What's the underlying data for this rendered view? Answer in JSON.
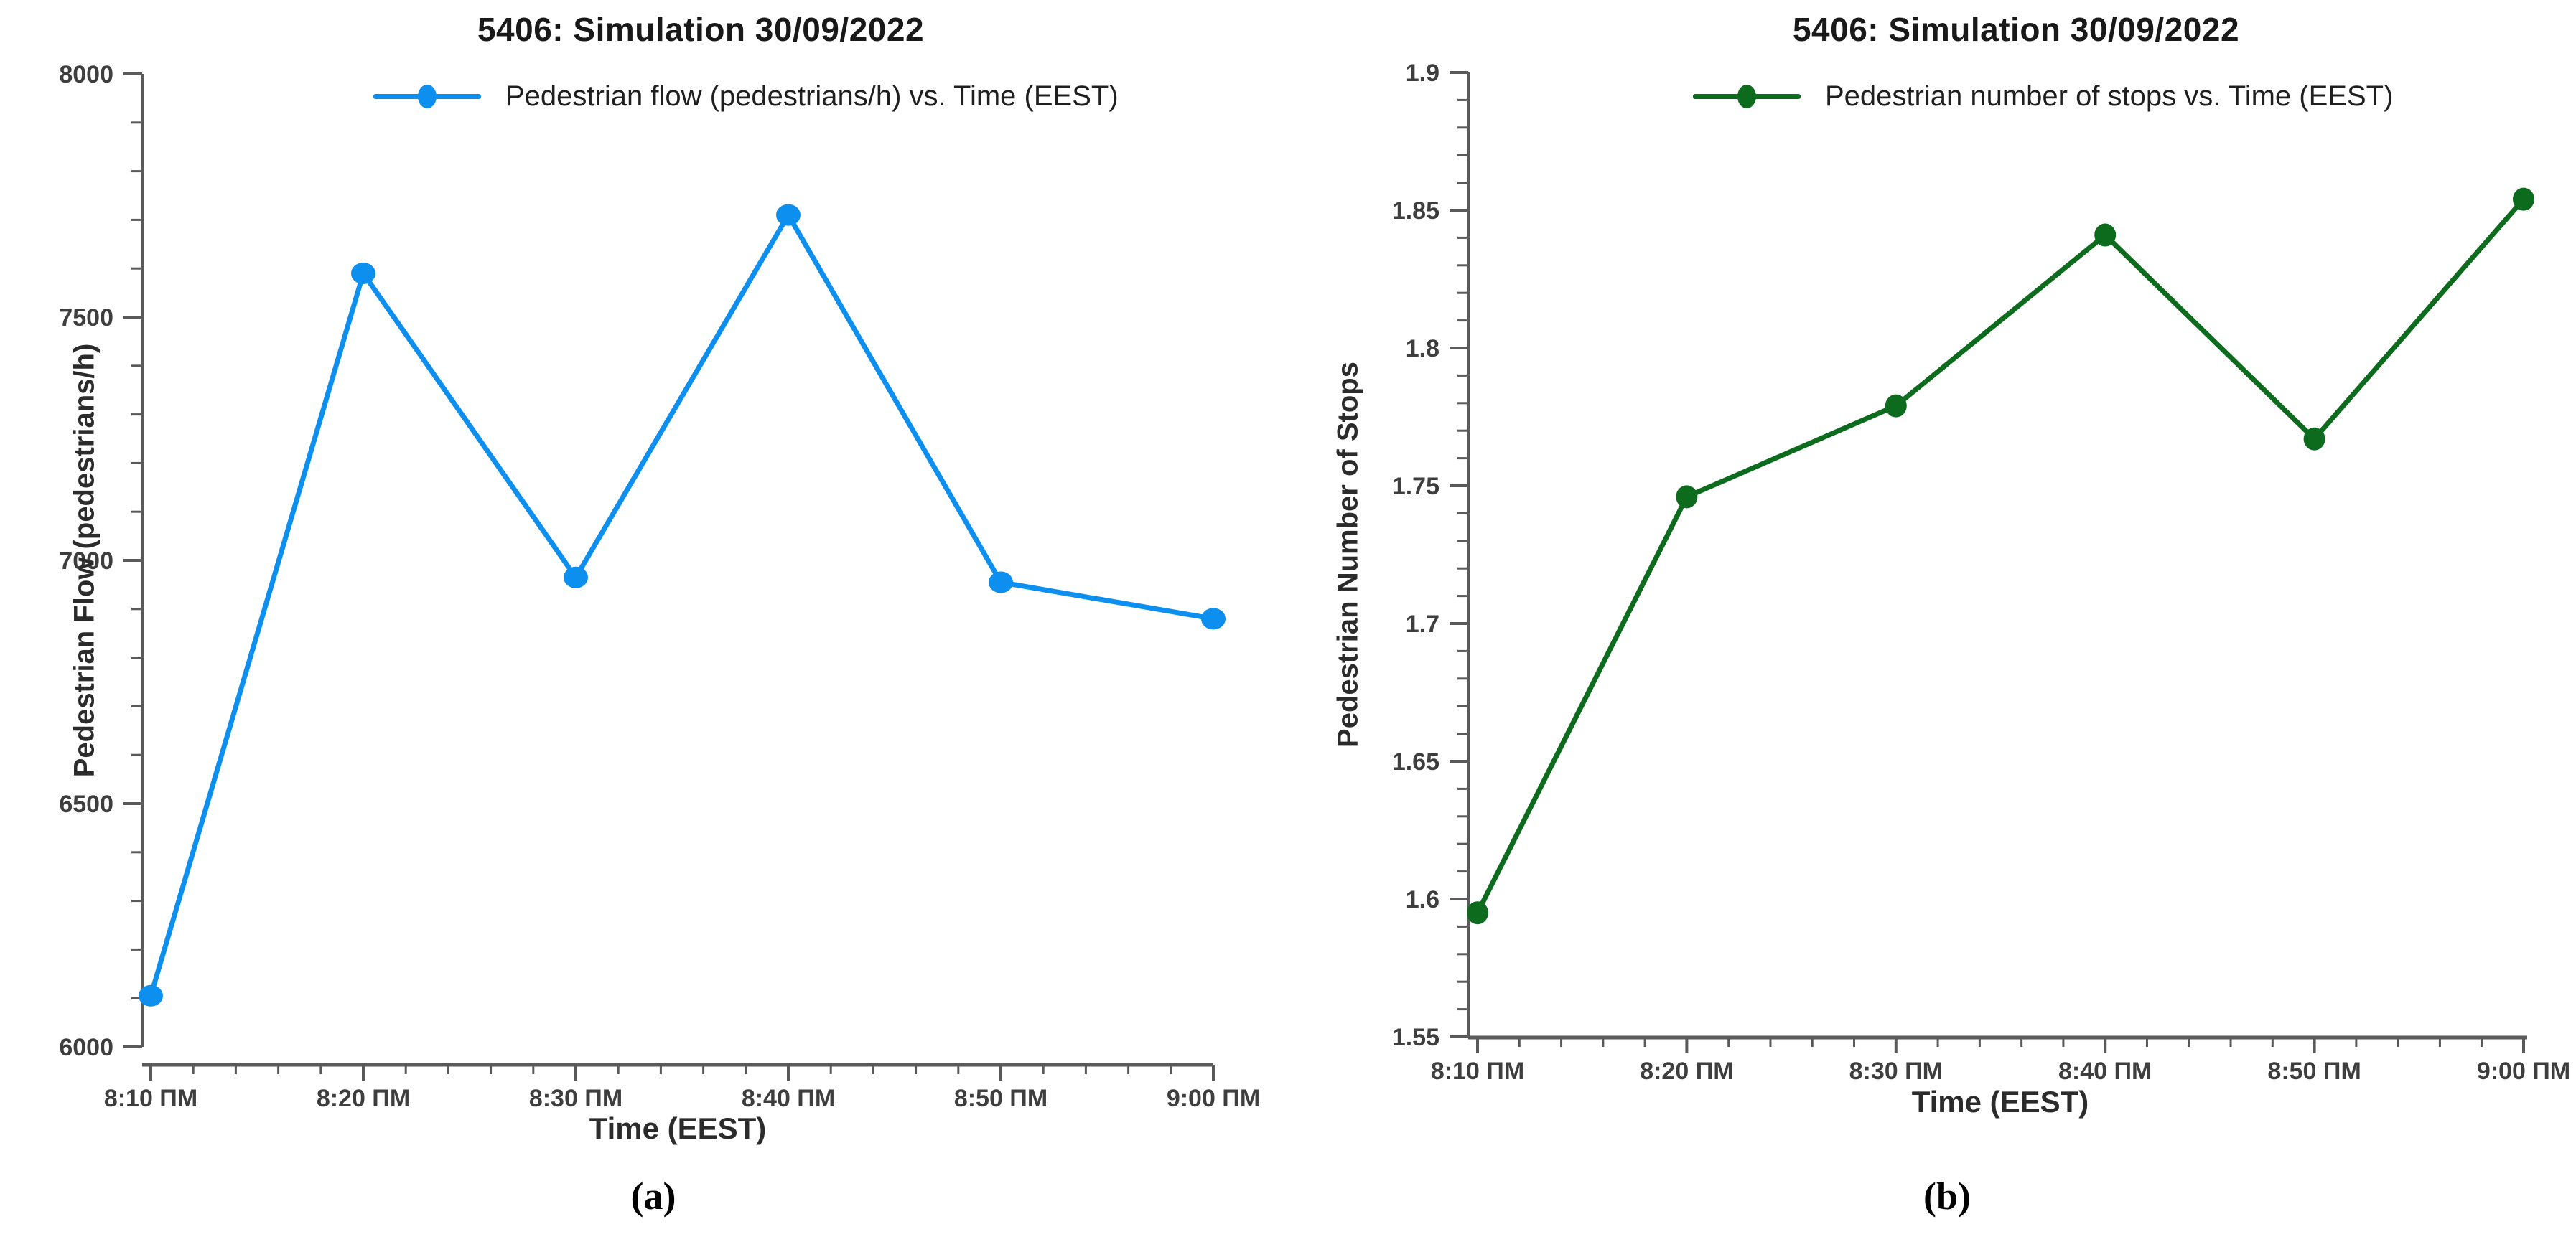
{
  "chart_data": [
    {
      "type": "line",
      "title": "5406: Simulation 30/09/2022",
      "legend_label": "Pedestrian flow (pedestrians/h) vs. Time (EEST)",
      "xlabel": "Time (EEST)",
      "ylabel": "Pedestrian Flow (pedestrians/h)",
      "categories": [
        "8:10 ΠΜ",
        "8:20 ΠΜ",
        "8:30 ΠΜ",
        "8:40 ΠΜ",
        "8:50 ΠΜ",
        "9:00 ΠΜ"
      ],
      "values": [
        6105,
        7590,
        6965,
        7710,
        6955,
        6880
      ],
      "ylim": [
        6000,
        8000
      ],
      "ytick_values": [
        8000,
        7500,
        7000,
        6500,
        6000
      ],
      "ytick_labels": [
        "8000",
        "7500",
        "7000",
        "6500",
        "6000"
      ],
      "yminor_step": 100,
      "xminor_divisions": 5,
      "grid": false,
      "legend_position": "top",
      "series_color": "#0d8ff0",
      "caption": "(a)"
    },
    {
      "type": "line",
      "title": "5406: Simulation 30/09/2022",
      "legend_label": "Pedestrian number of stops vs. Time (EEST)",
      "xlabel": "Time (EEST)",
      "ylabel": "Pedestrian Number of Stops",
      "categories": [
        "8:10 ΠΜ",
        "8:20 ΠΜ",
        "8:30 ΠΜ",
        "8:40 ΠΜ",
        "8:50 ΠΜ",
        "9:00 ΠΜ"
      ],
      "values": [
        1.595,
        1.746,
        1.779,
        1.841,
        1.767,
        1.854
      ],
      "ylim": [
        1.55,
        1.9
      ],
      "ytick_values": [
        1.9,
        1.85,
        1.8,
        1.75,
        1.7,
        1.65,
        1.6,
        1.55
      ],
      "ytick_labels": [
        "1.9",
        "1.85",
        "1.8",
        "1.75",
        "1.7",
        "1.65",
        "1.6",
        "1.55"
      ],
      "yminor_step": 0.01,
      "xminor_divisions": 5,
      "grid": false,
      "legend_position": "top",
      "series_color": "#0c6b1d",
      "caption": "(b)"
    }
  ],
  "axis_style": {
    "axis_color": "#5a5a5a",
    "tick_color": "#5a5a5a"
  }
}
